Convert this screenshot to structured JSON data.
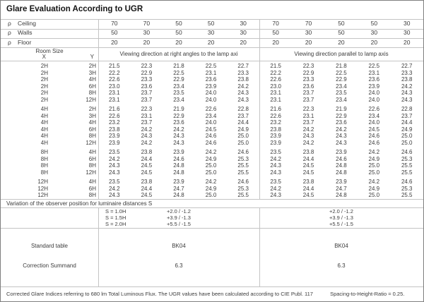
{
  "title": "Glare Evaluation According to UGR",
  "reflectances": [
    {
      "symbol": "ρ",
      "label": "Ceiling",
      "values": [
        "70",
        "70",
        "50",
        "50",
        "30",
        "70",
        "70",
        "50",
        "50",
        "30"
      ]
    },
    {
      "symbol": "ρ",
      "label": "Walls",
      "values": [
        "50",
        "30",
        "50",
        "30",
        "30",
        "50",
        "30",
        "50",
        "30",
        "30"
      ]
    },
    {
      "symbol": "ρ",
      "label": "Floor",
      "values": [
        "20",
        "20",
        "20",
        "20",
        "20",
        "20",
        "20",
        "20",
        "20",
        "20"
      ]
    }
  ],
  "header": {
    "room_size": "Room Size",
    "x": "X",
    "y": "Y",
    "left": "Viewing direction at right angles to the lamp axi",
    "right": "Viewing direction parallel to lamp axis"
  },
  "ugr": {
    "blocks": [
      {
        "rows": [
          {
            "x": "2H",
            "y": "2H",
            "left": [
              "21.5",
              "22.3",
              "21.8",
              "22.5",
              "22.7"
            ],
            "right": [
              "21.5",
              "22.3",
              "21.8",
              "22.5",
              "22.7"
            ]
          },
          {
            "x": "2H",
            "y": "3H",
            "left": [
              "22.2",
              "22.9",
              "22.5",
              "23.1",
              "23.3"
            ],
            "right": [
              "22.2",
              "22.9",
              "22.5",
              "23.1",
              "23.3"
            ]
          },
          {
            "x": "2H",
            "y": "4H",
            "left": [
              "22.6",
              "23.3",
              "22.9",
              "23.6",
              "23.8"
            ],
            "right": [
              "22.6",
              "23.3",
              "22.9",
              "23.6",
              "23.8"
            ]
          },
          {
            "x": "2H",
            "y": "6H",
            "left": [
              "23.0",
              "23.6",
              "23.4",
              "23.9",
              "24.2"
            ],
            "right": [
              "23.0",
              "23.6",
              "23.4",
              "23.9",
              "24.2"
            ]
          },
          {
            "x": "2H",
            "y": "8H",
            "left": [
              "23.1",
              "23.7",
              "23.5",
              "24.0",
              "24.3"
            ],
            "right": [
              "23.1",
              "23.7",
              "23.5",
              "24.0",
              "24.3"
            ]
          },
          {
            "x": "2H",
            "y": "12H",
            "left": [
              "23.1",
              "23.7",
              "23.4",
              "24.0",
              "24.3"
            ],
            "right": [
              "23.1",
              "23.7",
              "23.4",
              "24.0",
              "24.3"
            ]
          }
        ]
      },
      {
        "rows": [
          {
            "x": "4H",
            "y": "2H",
            "left": [
              "21.6",
              "22.3",
              "21.9",
              "22.6",
              "22.8"
            ],
            "right": [
              "21.6",
              "22.3",
              "21.9",
              "22.6",
              "22.8"
            ]
          },
          {
            "x": "4H",
            "y": "3H",
            "left": [
              "22.6",
              "23.1",
              "22.9",
              "23.4",
              "23.7"
            ],
            "right": [
              "22.6",
              "23.1",
              "22.9",
              "23.4",
              "23.7"
            ]
          },
          {
            "x": "4H",
            "y": "4H",
            "left": [
              "23.2",
              "23.7",
              "23.6",
              "24.0",
              "24.4"
            ],
            "right": [
              "23.2",
              "23.7",
              "23.6",
              "24.0",
              "24.4"
            ]
          },
          {
            "x": "4H",
            "y": "6H",
            "left": [
              "23.8",
              "24.2",
              "24.2",
              "24.5",
              "24.9"
            ],
            "right": [
              "23.8",
              "24.2",
              "24.2",
              "24.5",
              "24.9"
            ]
          },
          {
            "x": "4H",
            "y": "8H",
            "left": [
              "23.9",
              "24.3",
              "24.3",
              "24.6",
              "25.0"
            ],
            "right": [
              "23.9",
              "24.3",
              "24.3",
              "24.6",
              "25.0"
            ]
          },
          {
            "x": "4H",
            "y": "12H",
            "left": [
              "23.9",
              "24.2",
              "24.3",
              "24.6",
              "25.0"
            ],
            "right": [
              "23.9",
              "24.2",
              "24.3",
              "24.6",
              "25.0"
            ]
          }
        ]
      },
      {
        "rows": [
          {
            "x": "8H",
            "y": "4H",
            "left": [
              "23.5",
              "23.8",
              "23.9",
              "24.2",
              "24.6"
            ],
            "right": [
              "23.5",
              "23.8",
              "23.9",
              "24.2",
              "24.6"
            ]
          },
          {
            "x": "8H",
            "y": "6H",
            "left": [
              "24.2",
              "24.4",
              "24.6",
              "24.9",
              "25.3"
            ],
            "right": [
              "24.2",
              "24.4",
              "24.6",
              "24.9",
              "25.3"
            ]
          },
          {
            "x": "8H",
            "y": "8H",
            "left": [
              "24.3",
              "24.5",
              "24.8",
              "25.0",
              "25.5"
            ],
            "right": [
              "24.3",
              "24.5",
              "24.8",
              "25.0",
              "25.5"
            ]
          },
          {
            "x": "8H",
            "y": "12H",
            "left": [
              "24.3",
              "24.5",
              "24.8",
              "25.0",
              "25.5"
            ],
            "right": [
              "24.3",
              "24.5",
              "24.8",
              "25.0",
              "25.5"
            ]
          }
        ]
      },
      {
        "rows": [
          {
            "x": "12H",
            "y": "4H",
            "left": [
              "23.5",
              "23.8",
              "23.9",
              "24.2",
              "24.6"
            ],
            "right": [
              "23.5",
              "23.8",
              "23.9",
              "24.2",
              "24.6"
            ]
          },
          {
            "x": "12H",
            "y": "6H",
            "left": [
              "24.2",
              "24.4",
              "24.7",
              "24.9",
              "25.3"
            ],
            "right": [
              "24.2",
              "24.4",
              "24.7",
              "24.9",
              "25.3"
            ]
          },
          {
            "x": "12H",
            "y": "8H",
            "left": [
              "24.3",
              "24.5",
              "24.8",
              "25.0",
              "25.5"
            ],
            "right": [
              "24.3",
              "24.5",
              "24.8",
              "25.0",
              "25.5"
            ]
          }
        ]
      }
    ]
  },
  "variation_note": "Variation of the observer position for luminaire distances S",
  "spacing": {
    "rows": [
      {
        "label": "S = 1.0H",
        "left": "+2.0 / -1.2",
        "right": "+2.0 / -1.2"
      },
      {
        "label": "S = 1.5H",
        "left": "+3.9 / -1.3",
        "right": "+3.9 / -1.3"
      },
      {
        "label": "S = 2.0H",
        "left": "+5.5 / -1.5",
        "right": "+5.5 / -1.5"
      }
    ]
  },
  "summary": {
    "rows": [
      {
        "label": "Standard table",
        "left": "BK04",
        "right": "BK04"
      },
      {
        "label": "Correction Summand",
        "left": "6.3",
        "right": "6.3"
      }
    ]
  },
  "footer": {
    "text": "Corrected Glare Indices referring to 680 lm Total Luminous Flux. The UGR values have been calculated according to CIE Publ. 117",
    "ratio": "Spacing-to-Height-Ratio = 0.25."
  },
  "colors": {
    "grid": "#c4c4c4",
    "text": "#3c3c3c",
    "title": "#141414",
    "border": "#7f7f7f",
    "background": "#ffffff"
  }
}
